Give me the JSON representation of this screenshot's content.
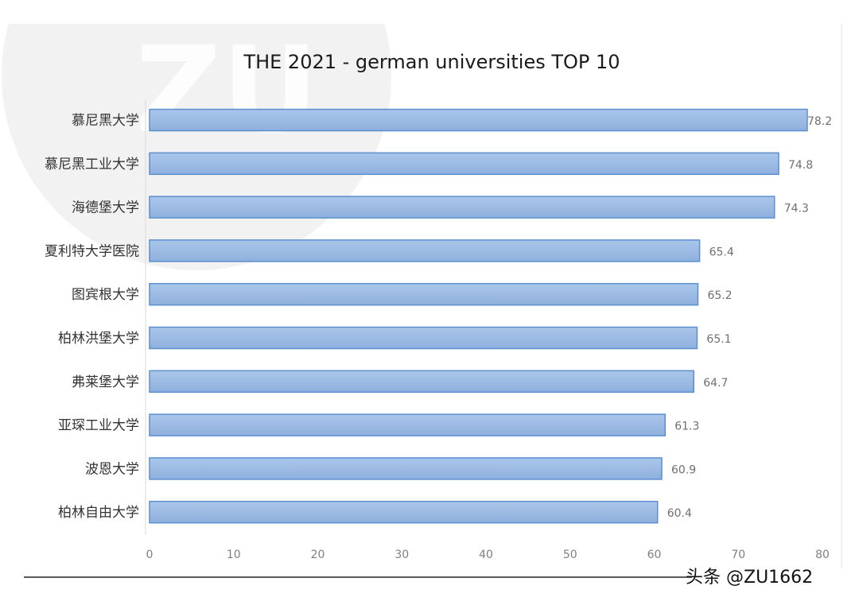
{
  "chart_data": {
    "type": "bar",
    "orientation": "horizontal",
    "title": "THE 2021 - german universities TOP 10",
    "categories": [
      "慕尼黑大学",
      "慕尼黑工业大学",
      "海德堡大学",
      "夏利特大学医院",
      "图宾根大学",
      "柏林洪堡大学",
      "弗莱堡大学",
      "亚琛工业大学",
      "波恩大学",
      "柏林自由大学"
    ],
    "values": [
      78.2,
      74.8,
      74.3,
      65.4,
      65.2,
      65.1,
      64.7,
      61.3,
      60.9,
      60.4
    ],
    "xlim": [
      0,
      80
    ],
    "xticks": [
      "0",
      "10",
      "20",
      "30",
      "40",
      "50",
      "60",
      "70",
      "80"
    ],
    "data_labels": [
      "78.2",
      "74.8",
      "74.3",
      "65.4",
      "65.2",
      "65.1",
      "64.7",
      "61.3",
      "60.9",
      "60.4"
    ],
    "grid": false,
    "legend": "none",
    "bar_color": "#9dbde6",
    "bar_border_color": "#5b8fd0"
  },
  "logo_watermark": "ZU",
  "watermark": "头条 @ZU1662"
}
